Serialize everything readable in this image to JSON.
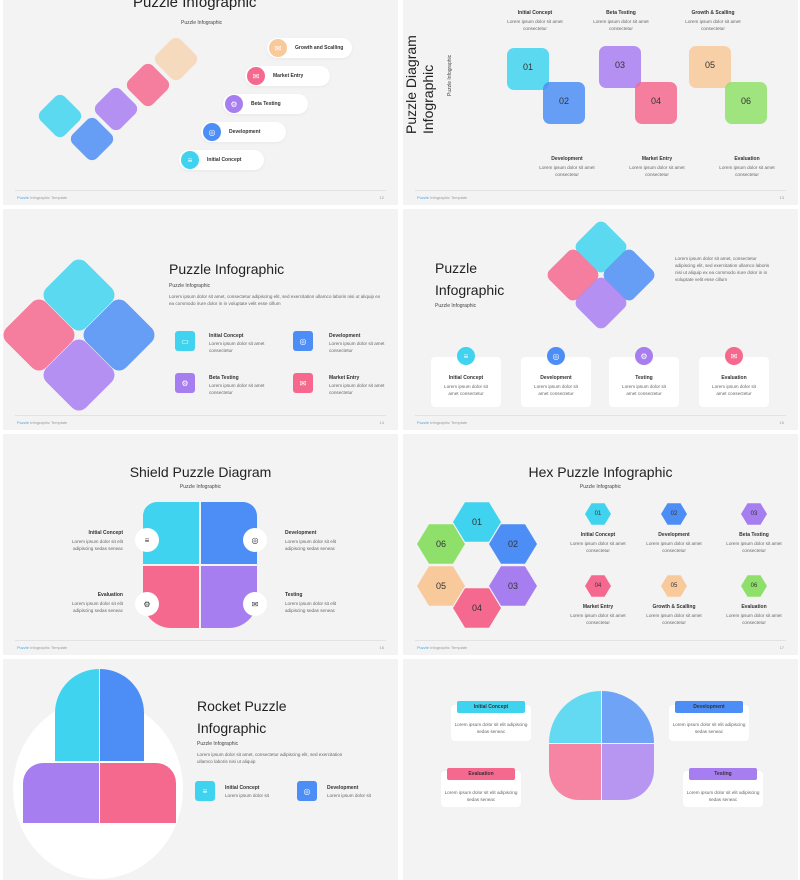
{
  "footer_brand": "Puzzle",
  "footer_text": "Infographic Template",
  "lorem_short": "Lorem ipsum dolor sit amet consectetur",
  "slides": {
    "s1": {
      "title": "Puzzle Infographic",
      "subtitle": "Puzzle Infographic",
      "page": "12",
      "steps": [
        "Growth and Scalling",
        "Market Entry",
        "Beta Testing",
        "Development",
        "Initial Concept"
      ]
    },
    "s2": {
      "title_line1": "Puzzle Diagram",
      "title_line2": "Infographic",
      "subtitle": "Puzzle Infographic",
      "page": "13",
      "top_labels": [
        "Initial Concept",
        "Beta Testing",
        "Growth & Scalling"
      ],
      "bottom_labels": [
        "Development",
        "Market Entry",
        "Evaluation"
      ],
      "numbers": [
        "01",
        "02",
        "03",
        "04",
        "05",
        "06"
      ],
      "text": "Lorem ipsum dolor sit amet consectetur"
    },
    "s3": {
      "title": "Puzzle Infographic",
      "subtitle": "Puzzle Infographic",
      "body": "Lorem ipsum dolor sit amet, consectetur adipiscing elit, sed exercitation ullamco laboris nisi ut aliquip ex ea commodo irure dolor in in voluptate velit esse cillum",
      "items": [
        "Initial Concept",
        "Development",
        "Beta Testing",
        "Market Entry"
      ],
      "item_text": "Lorem ipsum dolor sit amet consectetur",
      "page": "14"
    },
    "s4": {
      "title_line1": "Puzzle",
      "title_line2": "Infographic",
      "subtitle": "Puzzle Infographic",
      "body": "Lorem ipsum dolor sit amet, consectetur adipiscing elit, sed exercitation ullamco laboris nisi ut aliquip ex ea commodo irure dolor in in voluptate velit esse cillum",
      "items": [
        "Initial Concept",
        "Development",
        "Testing",
        "Evaluation"
      ],
      "item_text": "Lorem ipsum dolor sit amet consectetur",
      "page": "15"
    },
    "s5": {
      "title": "Shield Puzzle Diagram",
      "subtitle": "Puzzle Infographic",
      "labels": [
        "Initial Concept",
        "Development",
        "Evaluation",
        "Testing"
      ],
      "text": "Lorem ipsum dolor sit elit adipiscing sedas seneac",
      "page": "16"
    },
    "s6": {
      "title": "Hex Puzzle Infographic",
      "subtitle": "Puzzle Infographic",
      "numbers": [
        "01",
        "02",
        "03",
        "04",
        "05",
        "06"
      ],
      "labels": [
        "Initial Concept",
        "Development",
        "Beta Testing",
        "Market Entry",
        "Growth & Scalling",
        "Evaluation"
      ],
      "text": "Lorem ipsum dolor sit amet consectetur",
      "page": "17"
    },
    "s7": {
      "title_line1": "Rocket Puzzle",
      "title_line2": "Infographic",
      "subtitle": "Puzzle Infographic",
      "body": "Lorem ipsum dolor sit amet, consectetur adipiscing elit, sed exercitation ullamco laboris nisi ut aliquip",
      "items": [
        "Initial Concept",
        "Development"
      ],
      "item_text": "Lorem ipsum dolor sit"
    },
    "s8": {
      "labels": [
        "Initial Concept",
        "Development",
        "Evaluation",
        "Testing"
      ],
      "text": "Lorem ipsum dolor sit elit adipiscing sedas seneac"
    }
  },
  "colors": {
    "cyan": "#3fd3f0",
    "blue": "#4c8ef5",
    "purple": "#a77ef0",
    "pink": "#f5698f",
    "peach": "#f8c99a",
    "green": "#8fe06a"
  }
}
